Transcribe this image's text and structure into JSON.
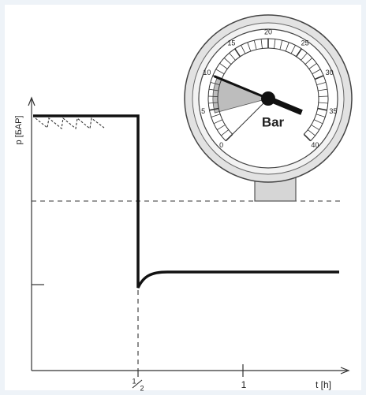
{
  "axes": {
    "y_label": "p [БАР]",
    "x_label": "t [h]",
    "x_tick_half": {
      "numerator": "1",
      "denominator": "2"
    },
    "x_tick_one": "1"
  },
  "gauge": {
    "unit": "Bar",
    "labels": [
      "0",
      "5",
      "10",
      "15",
      "20",
      "25",
      "30",
      "35",
      "40"
    ]
  }
}
